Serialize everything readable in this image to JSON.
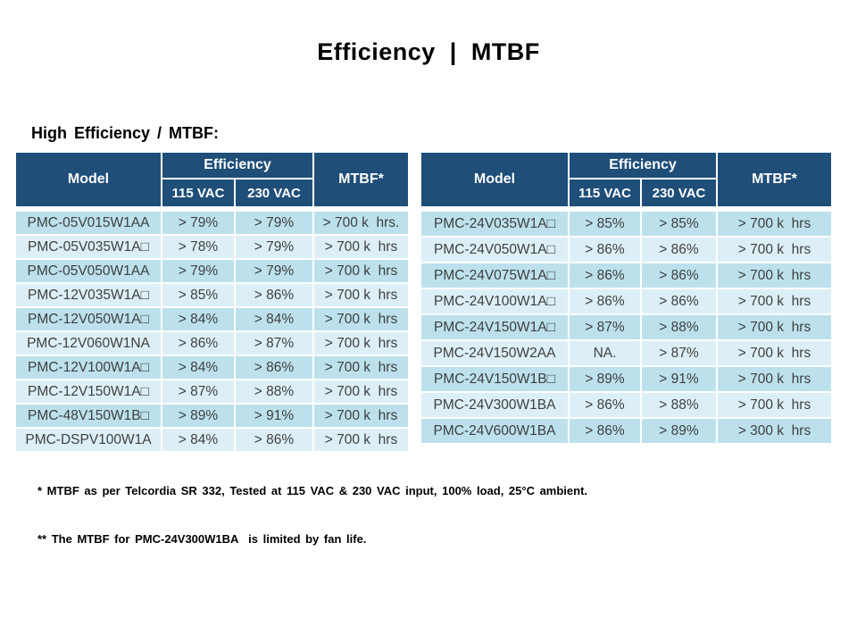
{
  "title": "Efficiency  |  MTBF",
  "subtitle": "High Efficiency / MTBF:",
  "colors": {
    "header_bg": "#1F4E79",
    "header_text": "#FFFFFF",
    "row_odd_bg": "#BCE1EC",
    "row_even_bg": "#DDEFF6",
    "body_text": "#3F3F3F",
    "title_text": "#000000"
  },
  "table_headers": {
    "model": "Model",
    "efficiency": "Efficiency",
    "vac_115": "115 VAC",
    "vac_230": "230 VAC",
    "mtbf": "MTBF*"
  },
  "tables": {
    "left": {
      "rows": [
        [
          "PMC-05V015W1AA",
          "> 79%",
          "> 79%",
          "> 700 k  hrs."
        ],
        [
          "PMC-05V035W1A□",
          "> 78%",
          "> 79%",
          "> 700 k  hrs"
        ],
        [
          "PMC-05V050W1AA",
          "> 79%",
          "> 79%",
          "> 700 k  hrs"
        ],
        [
          "PMC-12V035W1A□",
          "> 85%",
          "> 86%",
          "> 700 k  hrs"
        ],
        [
          "PMC-12V050W1A□",
          "> 84%",
          "> 84%",
          "> 700 k  hrs"
        ],
        [
          "PMC-12V060W1NA",
          "> 86%",
          "> 87%",
          "> 700 k  hrs"
        ],
        [
          "PMC-12V100W1A□",
          "> 84%",
          "> 86%",
          "> 700 k  hrs"
        ],
        [
          "PMC-12V150W1A□",
          "> 87%",
          "> 88%",
          "> 700 k  hrs"
        ],
        [
          "PMC-48V150W1B□",
          "> 89%",
          "> 91%",
          "> 700 k  hrs"
        ],
        [
          "PMC-DSPV100W1A",
          "> 84%",
          "> 86%",
          "> 700 k  hrs"
        ]
      ]
    },
    "right": {
      "rows": [
        [
          "PMC-24V035W1A□",
          "> 85%",
          "> 85%",
          "> 700 k  hrs"
        ],
        [
          "PMC-24V050W1A□",
          "> 86%",
          "> 86%",
          "> 700 k  hrs"
        ],
        [
          "PMC-24V075W1A□",
          "> 86%",
          "> 86%",
          "> 700 k  hrs"
        ],
        [
          "PMC-24V100W1A□",
          "> 86%",
          "> 86%",
          "> 700 k  hrs"
        ],
        [
          "PMC-24V150W1A□",
          "> 87%",
          "> 88%",
          "> 700 k  hrs"
        ],
        [
          "PMC-24V150W2AA",
          "NA.",
          "> 87%",
          "> 700 k  hrs"
        ],
        [
          "PMC-24V150W1B□",
          "> 89%",
          "> 91%",
          "> 700 k  hrs"
        ],
        [
          "PMC-24V300W1BA",
          "> 86%",
          "> 88%",
          "> 700 k  hrs"
        ],
        [
          "PMC-24V600W1BA",
          "> 86%",
          "> 89%",
          "> 300 k  hrs"
        ]
      ]
    }
  },
  "footnotes": [
    "* MTBF as per Telcordia SR 332, Tested at 115 VAC & 230 VAC input, 100% load, 25°C ambient.",
    "** The MTBF for PMC-24V300W1BA  is limited by fan life."
  ]
}
